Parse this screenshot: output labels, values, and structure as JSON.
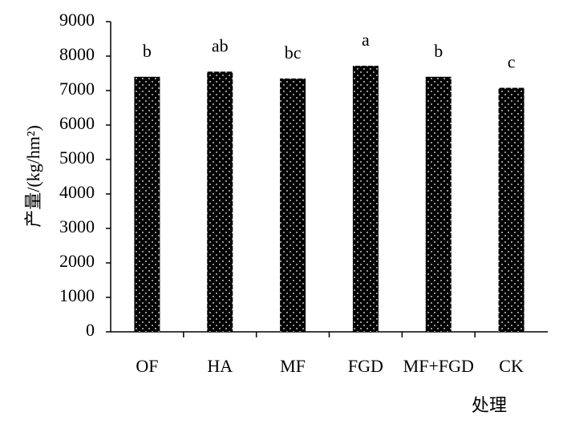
{
  "chart_data": {
    "type": "bar",
    "categories": [
      "OF",
      "HA",
      "MF",
      "FGD",
      "MF+FGD",
      "CK"
    ],
    "values": [
      7400,
      7550,
      7350,
      7720,
      7400,
      7080
    ],
    "annotations": [
      "b",
      "ab",
      "bc",
      "a",
      "b",
      "c"
    ],
    "color": "#000000",
    "y_label": "产量/(kg/hm²)",
    "x_label": "处理",
    "ylim": [
      0,
      9000
    ],
    "yticks": [
      0,
      1000,
      2000,
      3000,
      4000,
      5000,
      6000,
      7000,
      8000,
      9000
    ],
    "grid": false
  }
}
